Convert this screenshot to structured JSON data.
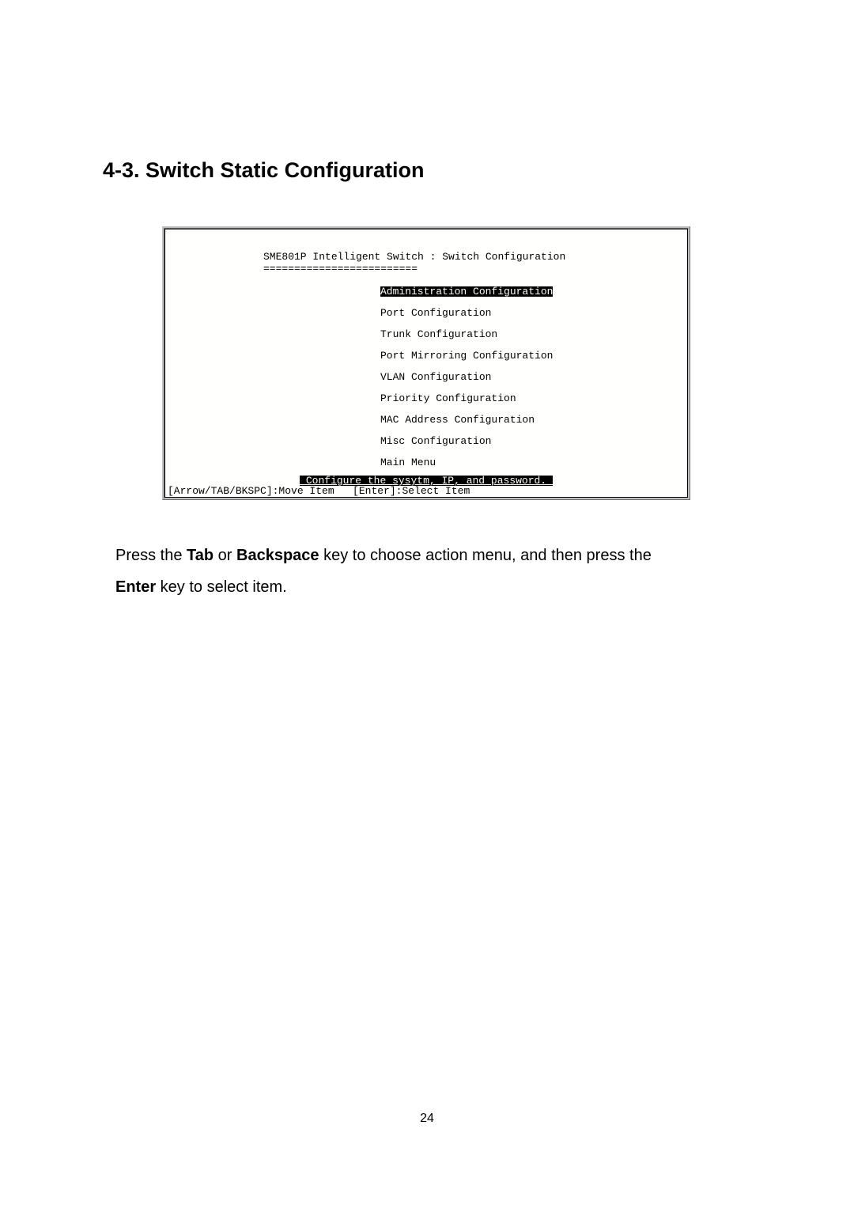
{
  "heading": "4-3. Switch Static Configuration",
  "terminal": {
    "title": "SME801P Intelligent Switch : Switch Configuration",
    "divider": "=========================",
    "menu_items": [
      {
        "label": "Administration Configuration",
        "selected": true
      },
      {
        "label": "Port Configuration",
        "selected": false
      },
      {
        "label": "Trunk Configuration",
        "selected": false
      },
      {
        "label": "Port Mirroring Configuration",
        "selected": false
      },
      {
        "label": "VLAN Configuration",
        "selected": false
      },
      {
        "label": "Priority Configuration",
        "selected": false
      },
      {
        "label": "MAC Address Configuration",
        "selected": false
      },
      {
        "label": "Misc Configuration",
        "selected": false
      },
      {
        "label": "Main Menu",
        "selected": false
      }
    ],
    "hint": " Configure the sysytm, IP, and password._",
    "nav_help": "[Arrow/TAB/BKSPC]:Move Item   [Enter]:Select Item"
  },
  "body_text": {
    "part1": "Press the ",
    "bold1": "Tab",
    "part2": " or ",
    "bold2": "Backspace",
    "part3": " key to choose action menu, and then press the ",
    "bold3": "Enter",
    "part4": " key to select item."
  },
  "page_number": "24",
  "colors": {
    "page_bg": "#ffffff",
    "terminal_bg": "#fffffe",
    "text": "#000000",
    "inverse_bg": "#000000",
    "inverse_fg": "#fffffe"
  },
  "fonts": {
    "heading_size": 27,
    "body_size": 20,
    "terminal_size": 13,
    "page_num_size": 16
  }
}
